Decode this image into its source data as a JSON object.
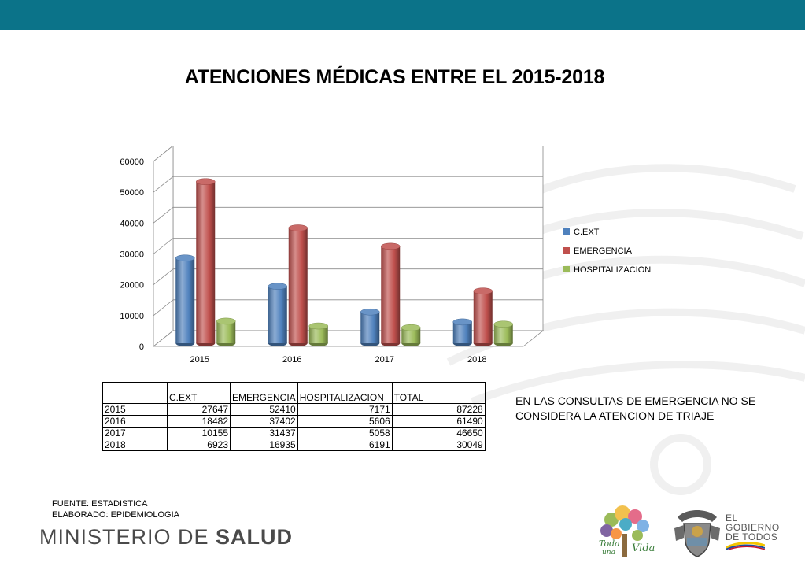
{
  "colors": {
    "top_bar": "#0b7389",
    "series": [
      "#4f81bd",
      "#c0504d",
      "#9bbb59"
    ]
  },
  "title": "ATENCIONES MÉDICAS ENTRE EL 2015-2018",
  "chart_data": {
    "type": "bar",
    "style": "3d-cylinder",
    "categories": [
      "2015",
      "2016",
      "2017",
      "2018"
    ],
    "series": [
      {
        "name": "C.EXT",
        "values": [
          27647,
          18482,
          10155,
          6923
        ]
      },
      {
        "name": "EMERGENCIA",
        "values": [
          52410,
          37402,
          31437,
          16935
        ]
      },
      {
        "name": "HOSPITALIZACION",
        "values": [
          7171,
          5606,
          5058,
          6191
        ]
      }
    ],
    "y_ticks": [
      "0",
      "10000",
      "20000",
      "30000",
      "40000",
      "50000",
      "60000"
    ],
    "ylim": [
      0,
      60000
    ],
    "grid": true,
    "legend_position": "right"
  },
  "table": {
    "headers": [
      "",
      "C.EXT",
      "EMERGENCIA",
      "HOSPITALIZACION",
      "TOTAL"
    ],
    "rows": [
      [
        "2015",
        "27647",
        "52410",
        "7171",
        "87228"
      ],
      [
        "2016",
        "18482",
        "37402",
        "5606",
        "61490"
      ],
      [
        "2017",
        "10155",
        "31437",
        "5058",
        "46650"
      ],
      [
        "2018",
        "6923",
        "16935",
        "6191",
        "30049"
      ]
    ]
  },
  "note": "EN LAS CONSULTAS DE EMERGENCIA NO SE CONSIDERA LA ATENCION DE TRIAJE",
  "footer": {
    "source": "FUENTE: ESTADISTICA",
    "author": "ELABORADO: EPIDEMIOLOGIA",
    "ministry_prefix": "MINISTERIO DE ",
    "ministry_bold": "SALUD",
    "logo_todos_1": "Toda",
    "logo_todos_2": "una",
    "logo_todos_3": "Vida",
    "gobierno_1": "EL",
    "gobierno_2": "GOBIERNO",
    "gobierno_3": "DE TODOS"
  }
}
